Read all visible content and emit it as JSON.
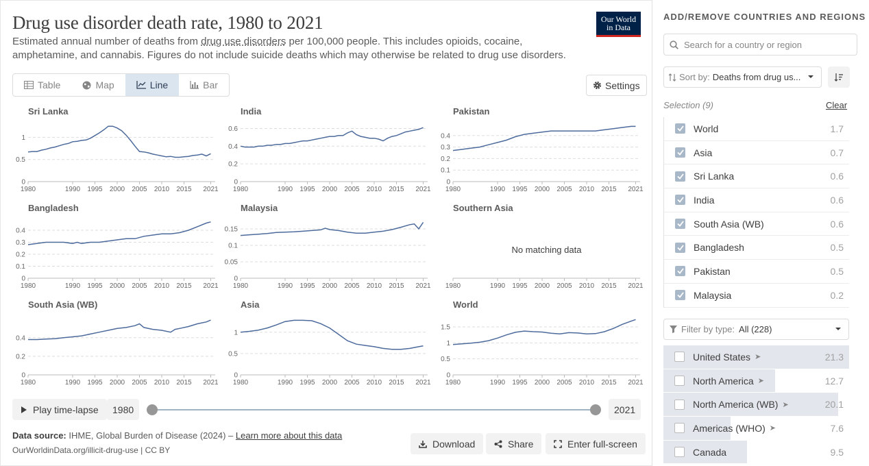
{
  "header": {
    "title": "Drug use disorder death rate, 1980 to 2021",
    "subtitle_pre": "Estimated annual number of deaths from ",
    "subtitle_link": "drug use disorders",
    "subtitle_post": " per 100,000 people. This includes opioids, cocaine, amphetamine, and cannabis. Figures do not include suicide deaths which may otherwise be related to drug use disorders.",
    "logo_line1": "Our World",
    "logo_line2": "in Data"
  },
  "tabs": [
    {
      "label": "Table",
      "icon": "table-icon"
    },
    {
      "label": "Map",
      "icon": "globe-icon"
    },
    {
      "label": "Line",
      "icon": "line-chart-icon",
      "active": true
    },
    {
      "label": "Bar",
      "icon": "bar-chart-icon"
    }
  ],
  "settings_label": "Settings",
  "timeline": {
    "play_label": "Play time-lapse",
    "start_year": "1980",
    "end_year": "2021"
  },
  "footer": {
    "source_label": "Data source:",
    "source_text": " IHME, Global Burden of Disease (2024) – ",
    "learn_more": "Learn more about this data",
    "url": "OurWorldinData.org/illicit-drug-use | CC BY",
    "download": "Download",
    "share": "Share",
    "fullscreen": "Enter full-screen"
  },
  "sidebar": {
    "title": "ADD/REMOVE COUNTRIES AND REGIONS",
    "search_placeholder": "Search for a country or region",
    "sort_label": "Sort by:",
    "sort_value": "Deaths from drug us...",
    "selection_label": "Selection (9)",
    "clear_label": "Clear",
    "selected": [
      {
        "name": "World",
        "value": "1.7"
      },
      {
        "name": "Asia",
        "value": "0.7"
      },
      {
        "name": "Sri Lanka",
        "value": "0.6"
      },
      {
        "name": "India",
        "value": "0.6"
      },
      {
        "name": "South Asia (WB)",
        "value": "0.6"
      },
      {
        "name": "Bangladesh",
        "value": "0.5"
      },
      {
        "name": "Pakistan",
        "value": "0.5"
      },
      {
        "name": "Malaysia",
        "value": "0.2"
      }
    ],
    "filter_label": "Filter by type:",
    "filter_value": "All (228)",
    "all": [
      {
        "name": "United States",
        "value": "21.3",
        "frac": 1.0,
        "arrow": true
      },
      {
        "name": "North America",
        "value": "12.7",
        "frac": 0.6,
        "arrow": true
      },
      {
        "name": "North America (WB)",
        "value": "20.1",
        "frac": 0.94,
        "arrow": true
      },
      {
        "name": "Americas (WHO)",
        "value": "7.6",
        "frac": 0.36,
        "arrow": true
      },
      {
        "name": "Canada",
        "value": "9.5",
        "frac": 0.45,
        "arrow": false
      }
    ]
  },
  "chart_data": [
    {
      "type": "line",
      "title": "Sri Lanka",
      "xticks": [
        "1980",
        "1990",
        "1995",
        "2000",
        "2005",
        "2010",
        "2015",
        "2021"
      ],
      "yticks": [
        "0",
        "0.5",
        "1"
      ],
      "ylim": [
        0,
        1.3
      ],
      "x": [
        1980,
        1981,
        1982,
        1983,
        1984,
        1985,
        1986,
        1987,
        1988,
        1989,
        1990,
        1991,
        1992,
        1993,
        1994,
        1995,
        1996,
        1997,
        1998,
        1999,
        2000,
        2001,
        2002,
        2003,
        2004,
        2005,
        2006,
        2007,
        2008,
        2009,
        2010,
        2011,
        2012,
        2013,
        2014,
        2015,
        2016,
        2017,
        2018,
        2019,
        2020,
        2021
      ],
      "values": [
        0.67,
        0.68,
        0.68,
        0.71,
        0.73,
        0.76,
        0.78,
        0.81,
        0.84,
        0.86,
        0.9,
        0.91,
        0.93,
        0.94,
        0.98,
        1.04,
        1.1,
        1.17,
        1.25,
        1.25,
        1.21,
        1.15,
        1.05,
        0.93,
        0.8,
        0.68,
        0.67,
        0.65,
        0.62,
        0.6,
        0.58,
        0.56,
        0.57,
        0.55,
        0.55,
        0.56,
        0.57,
        0.59,
        0.6,
        0.62,
        0.58,
        0.63
      ]
    },
    {
      "type": "line",
      "title": "India",
      "xticks": [
        "1980",
        "1990",
        "1995",
        "2000",
        "2005",
        "2010",
        "2015",
        "2021"
      ],
      "yticks": [
        "0",
        "0.2",
        "0.4",
        "0.6"
      ],
      "ylim": [
        0,
        0.65
      ],
      "x": [
        1980,
        1981,
        1982,
        1983,
        1984,
        1985,
        1986,
        1987,
        1988,
        1989,
        1990,
        1991,
        1992,
        1993,
        1994,
        1995,
        1996,
        1997,
        1998,
        1999,
        2000,
        2001,
        2002,
        2003,
        2004,
        2005,
        2006,
        2007,
        2008,
        2009,
        2010,
        2011,
        2012,
        2013,
        2014,
        2015,
        2016,
        2017,
        2018,
        2019,
        2020,
        2021
      ],
      "values": [
        0.4,
        0.39,
        0.39,
        0.39,
        0.4,
        0.4,
        0.41,
        0.41,
        0.42,
        0.42,
        0.43,
        0.43,
        0.44,
        0.45,
        0.46,
        0.46,
        0.47,
        0.48,
        0.49,
        0.5,
        0.51,
        0.51,
        0.52,
        0.52,
        0.55,
        0.57,
        0.53,
        0.51,
        0.5,
        0.49,
        0.49,
        0.48,
        0.46,
        0.49,
        0.51,
        0.52,
        0.54,
        0.56,
        0.57,
        0.58,
        0.59,
        0.61
      ]
    },
    {
      "type": "line",
      "title": "Pakistan",
      "xticks": [
        "1980",
        "1990",
        "1995",
        "2000",
        "2005",
        "2010",
        "2015",
        "2021"
      ],
      "yticks": [
        "0",
        "0.1",
        "0.2",
        "0.3",
        "0.4"
      ],
      "ylim": [
        0,
        0.5
      ],
      "x": [
        1980,
        1982,
        1984,
        1986,
        1988,
        1990,
        1992,
        1994,
        1996,
        1998,
        2000,
        2002,
        2004,
        2006,
        2008,
        2010,
        2012,
        2014,
        2016,
        2018,
        2020,
        2021
      ],
      "values": [
        0.27,
        0.28,
        0.29,
        0.3,
        0.32,
        0.34,
        0.36,
        0.39,
        0.41,
        0.42,
        0.43,
        0.44,
        0.44,
        0.44,
        0.44,
        0.44,
        0.44,
        0.45,
        0.46,
        0.47,
        0.48,
        0.48
      ]
    },
    {
      "type": "line",
      "title": "Bangladesh",
      "xticks": [
        "1980",
        "1990",
        "1995",
        "2000",
        "2005",
        "2010",
        "2015",
        "2021"
      ],
      "yticks": [
        "0",
        "0.1",
        "0.2",
        "0.3",
        "0.4"
      ],
      "ylim": [
        0,
        0.48
      ],
      "x": [
        1980,
        1982,
        1984,
        1986,
        1988,
        1990,
        1991,
        1992,
        1994,
        1996,
        1998,
        2000,
        2002,
        2004,
        2006,
        2008,
        2010,
        2012,
        2014,
        2016,
        2018,
        2020,
        2021
      ],
      "values": [
        0.28,
        0.29,
        0.3,
        0.3,
        0.3,
        0.29,
        0.3,
        0.29,
        0.3,
        0.3,
        0.31,
        0.32,
        0.33,
        0.33,
        0.35,
        0.36,
        0.37,
        0.37,
        0.38,
        0.4,
        0.43,
        0.46,
        0.47
      ]
    },
    {
      "type": "line",
      "title": "Malaysia",
      "xticks": [
        "1980",
        "1990",
        "1995",
        "2000",
        "2005",
        "2010",
        "2015",
        "2021"
      ],
      "yticks": [
        "0",
        "0.05",
        "0.1",
        "0.15"
      ],
      "ylim": [
        0,
        0.175
      ],
      "x": [
        1980,
        1982,
        1984,
        1986,
        1988,
        1990,
        1992,
        1994,
        1996,
        1998,
        1999,
        2000,
        2002,
        2004,
        2006,
        2008,
        2010,
        2012,
        2014,
        2016,
        2018,
        2019,
        2020,
        2021
      ],
      "values": [
        0.13,
        0.132,
        0.134,
        0.136,
        0.139,
        0.14,
        0.141,
        0.143,
        0.145,
        0.147,
        0.152,
        0.148,
        0.145,
        0.14,
        0.137,
        0.137,
        0.14,
        0.143,
        0.148,
        0.155,
        0.163,
        0.165,
        0.15,
        0.17
      ]
    },
    {
      "type": "line",
      "title": "Southern Asia",
      "xticks": [
        "1980",
        "1990",
        "1995",
        "2000",
        "2005",
        "2010",
        "2015",
        "2021"
      ],
      "yticks": [],
      "ylim": [
        0,
        1
      ],
      "x": [],
      "values": [],
      "empty_message": "No matching data"
    },
    {
      "type": "line",
      "title": "South Asia (WB)",
      "xticks": [
        "1980",
        "1990",
        "1995",
        "2000",
        "2005",
        "2010",
        "2015",
        "2021"
      ],
      "yticks": [
        "0",
        "0.2",
        "0.4"
      ],
      "ylim": [
        0,
        0.62
      ],
      "x": [
        1980,
        1982,
        1984,
        1986,
        1988,
        1990,
        1992,
        1994,
        1996,
        1998,
        2000,
        2002,
        2004,
        2005,
        2006,
        2008,
        2010,
        2012,
        2013,
        2014,
        2016,
        2018,
        2020,
        2021
      ],
      "values": [
        0.38,
        0.38,
        0.385,
        0.39,
        0.4,
        0.41,
        0.42,
        0.44,
        0.46,
        0.48,
        0.5,
        0.51,
        0.53,
        0.55,
        0.51,
        0.49,
        0.48,
        0.46,
        0.49,
        0.5,
        0.52,
        0.55,
        0.57,
        0.59
      ]
    },
    {
      "type": "line",
      "title": "Asia",
      "xticks": [
        "1980",
        "1990",
        "1995",
        "2000",
        "2005",
        "2010",
        "2015",
        "2021"
      ],
      "yticks": [
        "0",
        "0.5",
        "1"
      ],
      "ylim": [
        0,
        1.35
      ],
      "x": [
        1980,
        1982,
        1984,
        1986,
        1988,
        1990,
        1992,
        1994,
        1996,
        1998,
        2000,
        2002,
        2004,
        2006,
        2008,
        2010,
        2012,
        2014,
        2016,
        2018,
        2020,
        2021
      ],
      "values": [
        1.0,
        1.02,
        1.05,
        1.1,
        1.17,
        1.25,
        1.28,
        1.28,
        1.27,
        1.2,
        1.1,
        0.95,
        0.8,
        0.72,
        0.69,
        0.66,
        0.62,
        0.6,
        0.6,
        0.62,
        0.66,
        0.68
      ]
    },
    {
      "type": "line",
      "title": "World",
      "xticks": [
        "1980",
        "1990",
        "1995",
        "2000",
        "2005",
        "2010",
        "2015",
        "2021"
      ],
      "yticks": [
        "0",
        "0.5",
        "1",
        "1.5"
      ],
      "ylim": [
        0,
        1.8
      ],
      "x": [
        1980,
        1982,
        1984,
        1986,
        1988,
        1990,
        1992,
        1994,
        1996,
        1998,
        2000,
        2002,
        2004,
        2006,
        2008,
        2010,
        2012,
        2014,
        2016,
        2018,
        2020,
        2021
      ],
      "values": [
        0.95,
        0.97,
        0.99,
        1.02,
        1.07,
        1.15,
        1.25,
        1.33,
        1.37,
        1.35,
        1.34,
        1.3,
        1.28,
        1.32,
        1.31,
        1.28,
        1.29,
        1.35,
        1.45,
        1.58,
        1.68,
        1.73
      ]
    }
  ]
}
